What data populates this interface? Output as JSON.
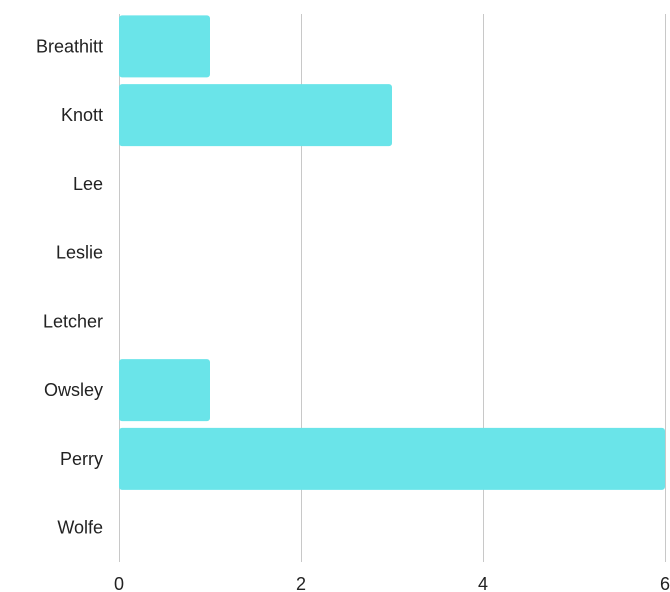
{
  "chart_data": {
    "type": "bar",
    "orientation": "horizontal",
    "categories": [
      "Breathitt",
      "Knott",
      "Lee",
      "Leslie",
      "Letcher",
      "Owsley",
      "Perry",
      "Wolfe"
    ],
    "values": [
      1,
      3,
      0,
      0,
      0,
      1,
      6,
      0
    ],
    "xlim": [
      0,
      6
    ],
    "xticks": [
      0,
      2,
      4,
      6
    ],
    "title": "",
    "xlabel": "",
    "ylabel": "",
    "grid": "vertical",
    "legend": "none",
    "bar_color": "#6ae4e9",
    "grid_color": "#c8c8c8",
    "text_color": "#222222"
  }
}
